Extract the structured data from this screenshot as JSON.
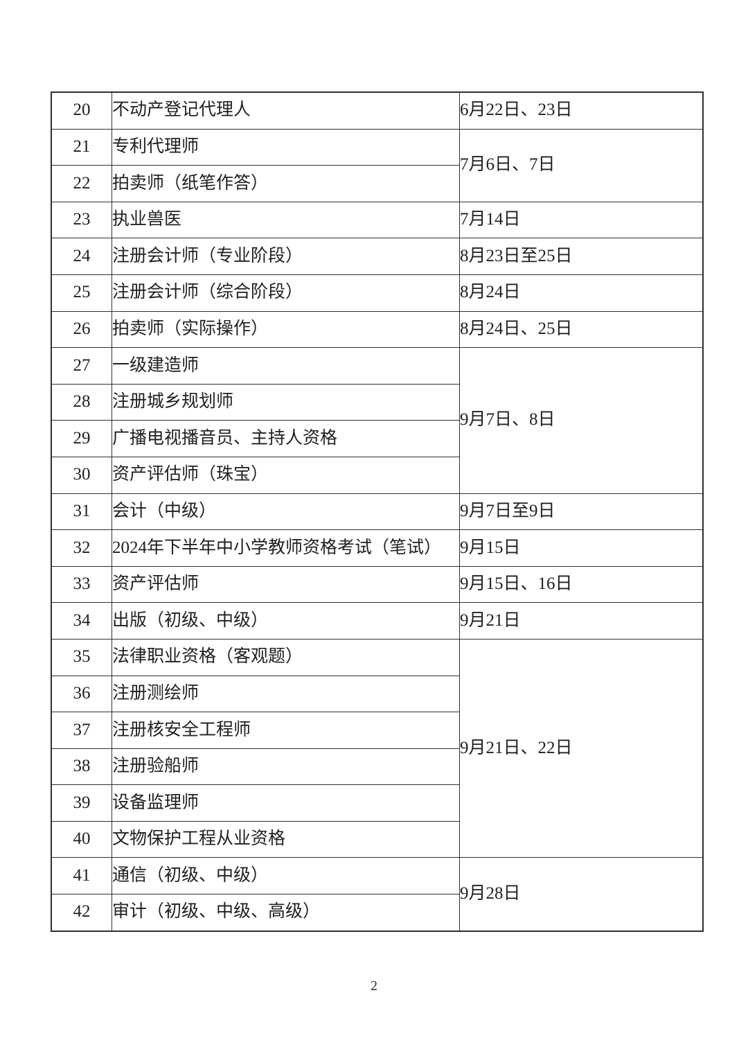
{
  "page_number": "2",
  "exam_table": {
    "rows": [
      {
        "no": "20",
        "name": "不动产登记代理人",
        "date": "6月22日、23日",
        "date_rowspan": 1
      },
      {
        "no": "21",
        "name": "专利代理师",
        "date": "7月6日、7日",
        "date_rowspan": 2
      },
      {
        "no": "22",
        "name": "拍卖师（纸笔作答）"
      },
      {
        "no": "23",
        "name": "执业兽医",
        "date": "7月14日",
        "date_rowspan": 1
      },
      {
        "no": "24",
        "name": "注册会计师（专业阶段）",
        "date": "8月23日至25日",
        "date_rowspan": 1
      },
      {
        "no": "25",
        "name": "注册会计师（综合阶段）",
        "date": "8月24日",
        "date_rowspan": 1
      },
      {
        "no": "26",
        "name": "拍卖师（实际操作）",
        "date": "8月24日、25日",
        "date_rowspan": 1
      },
      {
        "no": "27",
        "name": "一级建造师",
        "date": "9月7日、8日",
        "date_rowspan": 4
      },
      {
        "no": "28",
        "name": "注册城乡规划师"
      },
      {
        "no": "29",
        "name": "广播电视播音员、主持人资格"
      },
      {
        "no": "30",
        "name": "资产评估师（珠宝）"
      },
      {
        "no": "31",
        "name": "会计（中级）",
        "date": "9月7日至9日",
        "date_rowspan": 1
      },
      {
        "no": "32",
        "name": "2024年下半年中小学教师资格考试（笔试）",
        "date": "9月15日",
        "date_rowspan": 1
      },
      {
        "no": "33",
        "name": "资产评估师",
        "date": "9月15日、16日",
        "date_rowspan": 1
      },
      {
        "no": "34",
        "name": "出版（初级、中级）",
        "date": "9月21日",
        "date_rowspan": 1
      },
      {
        "no": "35",
        "name": "法律职业资格（客观题）",
        "date": "9月21日、22日",
        "date_rowspan": 6
      },
      {
        "no": "36",
        "name": "注册测绘师"
      },
      {
        "no": "37",
        "name": "注册核安全工程师"
      },
      {
        "no": "38",
        "name": "注册验船师"
      },
      {
        "no": "39",
        "name": "设备监理师"
      },
      {
        "no": "40",
        "name": "文物保护工程从业资格"
      },
      {
        "no": "41",
        "name": "通信（初级、中级）",
        "date": "9月28日",
        "date_rowspan": 2
      },
      {
        "no": "42",
        "name": "审计（初级、中级、高级）"
      }
    ]
  }
}
